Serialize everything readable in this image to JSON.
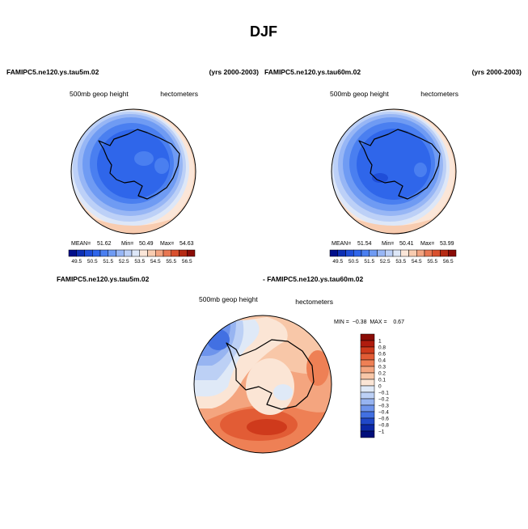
{
  "figure": {
    "title": "DJF",
    "left_panel": {
      "case": "FAMIPC5.ne120.ys.tau5m.02",
      "years": "(yrs 2000-2003)",
      "variable": "500mb geop height",
      "units": "hectometers",
      "stats": {
        "mean_label": "MEAN=",
        "mean": "51.62",
        "min_label": "Min=",
        "min": "50.49",
        "max_label": "Max=",
        "max": "54.63"
      }
    },
    "right_panel": {
      "case": "FAMIPC5.ne120.ys.tau60m.02",
      "years": "(yrs 2000-2003)",
      "variable": "500mb geop height",
      "units": "hectometers",
      "stats": {
        "mean_label": "MEAN=",
        "mean": "51.54",
        "min_label": "Min=",
        "min": "50.41",
        "max_label": "Max=",
        "max": "53.99"
      }
    },
    "diff_panel": {
      "case_a": "FAMIPC5.ne120.ys.tau5m.02",
      "case_b": "- FAMIPC5.ne120.ys.tau60m.02",
      "variable": "500mb geop height",
      "units": "hectometers",
      "stats_text": "MIN =  −0.38  MAX =    0.67"
    }
  },
  "chart_data": [
    {
      "type": "polar-contour-map",
      "region": "Antarctica / Southern Hemisphere",
      "season": "DJF",
      "title": "FAMIPC5.ne120.ys.tau5m.02",
      "variable": "500mb geop height",
      "units": "hectometers",
      "mean": 51.62,
      "min": 50.49,
      "max": 54.63,
      "colorbar": {
        "labels": [
          "49.5",
          "50.5",
          "51.5",
          "52.5",
          "53.5",
          "54.5",
          "55.5",
          "56.5"
        ],
        "colors": [
          "#000e8a",
          "#0d2fb4",
          "#1f4ed8",
          "#2f66ea",
          "#4a7ff0",
          "#6f9bf3",
          "#97b6f5",
          "#bcd0f7",
          "#dde7f8",
          "#fbe6d8",
          "#f8ccb0",
          "#f2a481",
          "#e87752",
          "#d8502e",
          "#b52a13",
          "#8a0c06"
        ]
      }
    },
    {
      "type": "polar-contour-map",
      "region": "Antarctica / Southern Hemisphere",
      "season": "DJF",
      "title": "FAMIPC5.ne120.ys.tau60m.02",
      "variable": "500mb geop height",
      "units": "hectometers",
      "mean": 51.54,
      "min": 50.41,
      "max": 53.99,
      "colorbar": {
        "labels": [
          "49.5",
          "50.5",
          "51.5",
          "52.5",
          "53.5",
          "54.5",
          "55.5",
          "56.5"
        ],
        "colors": [
          "#000e8a",
          "#0d2fb4",
          "#1f4ed8",
          "#2f66ea",
          "#4a7ff0",
          "#6f9bf3",
          "#97b6f5",
          "#bcd0f7",
          "#dde7f8",
          "#fbe6d8",
          "#f8ccb0",
          "#f2a481",
          "#e87752",
          "#d8502e",
          "#b52a13",
          "#8a0c06"
        ]
      }
    },
    {
      "type": "polar-contour-map",
      "region": "Antarctica / Southern Hemisphere",
      "season": "DJF",
      "title": "FAMIPC5.ne120.ys.tau5m.02 - FAMIPC5.ne120.ys.tau60m.02",
      "variable": "500mb geop height",
      "units": "hectometers",
      "min": -0.38,
      "max": 0.67,
      "colorbar": {
        "labels": [
          "1",
          "0.8",
          "0.6",
          "0.4",
          "0.3",
          "0.2",
          "0.1",
          "0",
          "−0.1",
          "−0.2",
          "−0.3",
          "−0.4",
          "−0.6",
          "−0.8",
          "−1"
        ],
        "colors": [
          "#8a0c06",
          "#b01c0e",
          "#cf3a1c",
          "#e25c35",
          "#ee8055",
          "#f4a57f",
          "#f8c7a8",
          "#fbe5d5",
          "#dfe9f7",
          "#bcd0f5",
          "#97b4f1",
          "#6e94ec",
          "#4270e2",
          "#2048c8",
          "#0b28a6",
          "#000e7a"
        ]
      }
    }
  ]
}
